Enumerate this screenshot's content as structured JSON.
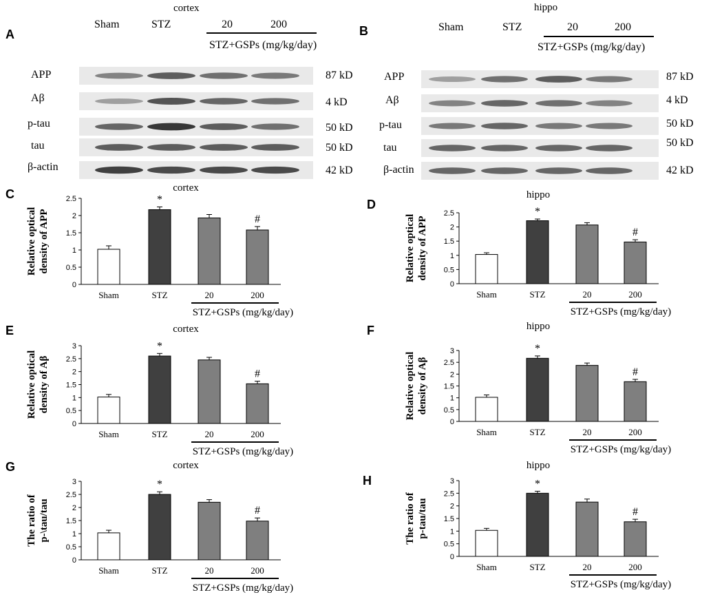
{
  "blots": [
    {
      "panel": "A",
      "region": "cortex",
      "lanes": [
        "Sham",
        "STZ",
        "20",
        "200"
      ],
      "treatment_label": "STZ+GSPs (mg/kg/day)",
      "rows": [
        {
          "protein": "APP",
          "size": "87 kD",
          "intensity": [
            0.55,
            0.75,
            0.65,
            0.6
          ]
        },
        {
          "protein": "Aβ",
          "size": "4  kD",
          "intensity": [
            0.4,
            0.8,
            0.7,
            0.65
          ]
        },
        {
          "protein": "p-tau",
          "size": "50 kD",
          "intensity": [
            0.7,
            0.95,
            0.75,
            0.65
          ]
        },
        {
          "protein": "tau",
          "size": "50 kD",
          "intensity": [
            0.75,
            0.75,
            0.75,
            0.75
          ]
        },
        {
          "protein": "β-actin",
          "size": "42 kD",
          "intensity": [
            0.9,
            0.85,
            0.85,
            0.85
          ]
        }
      ]
    },
    {
      "panel": "B",
      "region": "hippo",
      "lanes": [
        "Sham",
        "STZ",
        "20",
        "200"
      ],
      "treatment_label": "STZ+GSPs (mg/kg/day)",
      "rows": [
        {
          "protein": "APP",
          "size": "87 kD",
          "intensity": [
            0.4,
            0.65,
            0.75,
            0.6
          ]
        },
        {
          "protein": "Aβ",
          "size": "4  kD",
          "intensity": [
            0.55,
            0.7,
            0.65,
            0.55
          ]
        },
        {
          "protein": "p-tau",
          "size": "50 kD",
          "intensity": [
            0.6,
            0.7,
            0.6,
            0.6
          ]
        },
        {
          "protein": "tau",
          "size": "50 kD",
          "intensity": [
            0.7,
            0.7,
            0.7,
            0.7
          ]
        },
        {
          "protein": "β-actin",
          "size": "42 kD",
          "intensity": [
            0.7,
            0.7,
            0.7,
            0.7
          ]
        }
      ]
    }
  ],
  "chart_data": [
    {
      "panel": "C",
      "type": "bar",
      "title": "cortex",
      "ylabel": "Relative optical density of APP",
      "categories": [
        "Sham",
        "STZ",
        "20",
        "200"
      ],
      "values": [
        1.02,
        2.17,
        1.93,
        1.58
      ],
      "errors": [
        0.1,
        0.08,
        0.1,
        0.1
      ],
      "marks": [
        "",
        "*",
        "",
        "#"
      ],
      "ylim": [
        0,
        2.5
      ],
      "yticks": [
        "0",
        "0.5",
        "1",
        "1.5",
        "2",
        "2.5"
      ],
      "group_label": "STZ+GSPs (mg/kg/day)"
    },
    {
      "panel": "D",
      "type": "bar",
      "title": "hippo",
      "ylabel": "Relative optical density of APP",
      "categories": [
        "Sham",
        "STZ",
        "20",
        "200"
      ],
      "values": [
        1.03,
        2.22,
        2.07,
        1.47
      ],
      "errors": [
        0.06,
        0.06,
        0.08,
        0.08
      ],
      "marks": [
        "",
        "*",
        "",
        "#"
      ],
      "ylim": [
        0,
        2.5
      ],
      "yticks": [
        "0",
        "0.5",
        "1",
        "1.5",
        "2",
        "2.5"
      ],
      "group_label": "STZ+GSPs (mg/kg/day)"
    },
    {
      "panel": "E",
      "type": "bar",
      "title": "cortex",
      "ylabel": "Relative optical density of Aβ",
      "categories": [
        "Sham",
        "STZ",
        "20",
        "200"
      ],
      "values": [
        1.02,
        2.6,
        2.45,
        1.53
      ],
      "errors": [
        0.1,
        0.1,
        0.1,
        0.1
      ],
      "marks": [
        "",
        "*",
        "",
        "#"
      ],
      "ylim": [
        0,
        3
      ],
      "yticks": [
        "0",
        "0.5",
        "1",
        "1.5",
        "2",
        "2.5",
        "3"
      ],
      "group_label": "STZ+GSPs (mg/kg/day)"
    },
    {
      "panel": "F",
      "type": "bar",
      "title": "hippo",
      "ylabel": "Relative optical density of Aβ",
      "categories": [
        "Sham",
        "STZ",
        "20",
        "200"
      ],
      "values": [
        1.02,
        2.67,
        2.37,
        1.68
      ],
      "errors": [
        0.1,
        0.1,
        0.1,
        0.1
      ],
      "marks": [
        "",
        "*",
        "",
        "#"
      ],
      "ylim": [
        0,
        3
      ],
      "yticks": [
        "0",
        "0.5",
        "1",
        "1.5",
        "2",
        "2.5",
        "3"
      ],
      "group_label": "STZ+GSPs (mg/kg/day)"
    },
    {
      "panel": "G",
      "type": "bar",
      "title": "cortex",
      "ylabel": "The ratio of p-\\tau/tau",
      "categories": [
        "Sham",
        "STZ",
        "20",
        "200"
      ],
      "values": [
        1.03,
        2.5,
        2.2,
        1.48
      ],
      "errors": [
        0.1,
        0.1,
        0.1,
        0.12
      ],
      "marks": [
        "",
        "*",
        "",
        "#"
      ],
      "ylim": [
        0,
        3
      ],
      "yticks": [
        "0",
        "0.5",
        "1",
        "1.5",
        "2",
        "2.5",
        "3"
      ],
      "group_label": "STZ+GSPs (mg/kg/day)"
    },
    {
      "panel": "H",
      "type": "bar",
      "title": "hippo",
      "ylabel": "The ratio of p-tau/tau",
      "categories": [
        "Sham",
        "STZ",
        "20",
        "200"
      ],
      "values": [
        1.03,
        2.5,
        2.15,
        1.37
      ],
      "errors": [
        0.08,
        0.08,
        0.12,
        0.1
      ],
      "marks": [
        "",
        "*",
        "",
        "#"
      ],
      "ylim": [
        0,
        3
      ],
      "yticks": [
        "0",
        "0.5",
        "1",
        "1.5",
        "2",
        "2.5",
        "3"
      ],
      "group_label": "STZ+GSPs (mg/kg/day)"
    }
  ],
  "colors": {
    "sham": "#ffffff",
    "stz": "#404040",
    "gsp": "#7f7f7f",
    "axis": "#000000",
    "blot_bg": "#e9e9e9",
    "band": "#303030"
  }
}
